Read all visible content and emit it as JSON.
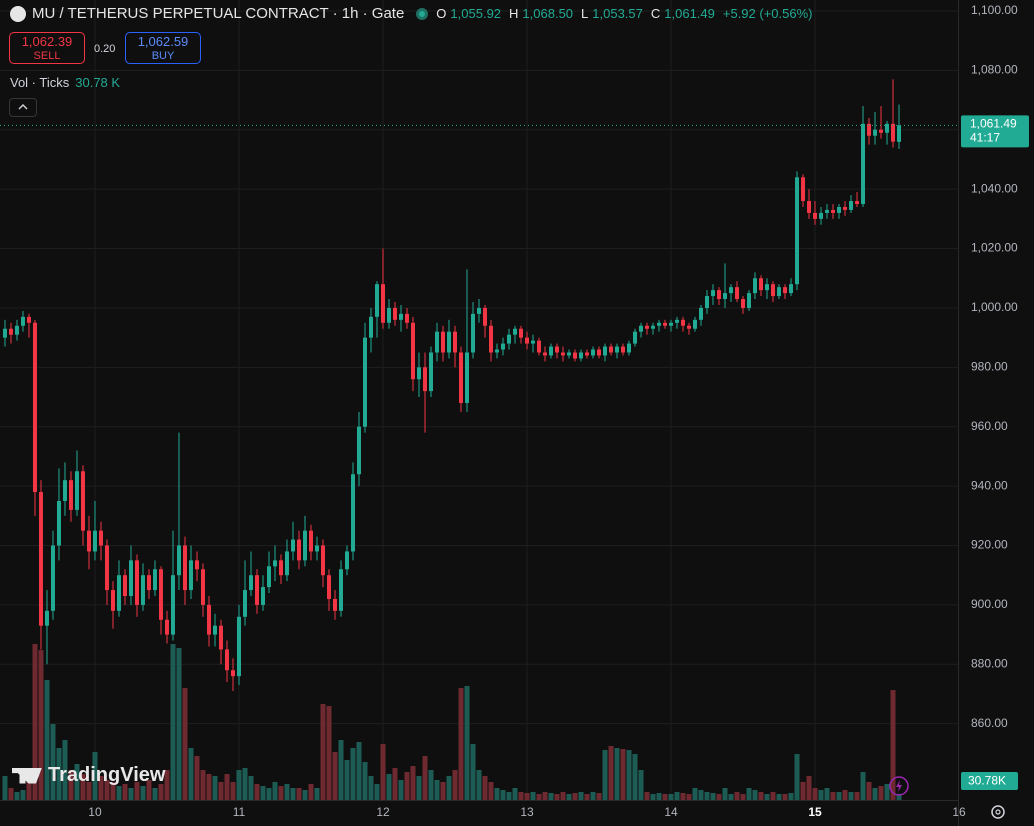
{
  "header": {
    "symbol": "MU / TETHERUS PERPETUAL CONTRACT · 1h · Gate",
    "ohlc_labels": [
      "O",
      "H",
      "L",
      "C"
    ],
    "ohlc_values": [
      "1,055.92",
      "1,068.50",
      "1,053.57",
      "1,061.49"
    ],
    "change": "+5.92 (+0.56%)",
    "sell_price": "1,062.39",
    "sell_label": "SELL",
    "spread": "0.20",
    "buy_price": "1,062.59",
    "buy_label": "BUY",
    "volume_title": "Vol · Ticks",
    "volume_value": "30.78 K"
  },
  "watermark": "TradingView",
  "chart_data": {
    "type": "candlestick",
    "up_color": "#22ab94",
    "down_color": "#f23645",
    "volume_up_color": "#1d5c55",
    "volume_down_color": "#6e2a30",
    "grid": true,
    "xlim": [
      -0.83,
      158.83
    ],
    "xticks": [
      {
        "value": 15,
        "label": "10"
      },
      {
        "value": 39,
        "label": "11"
      },
      {
        "value": 63,
        "label": "12"
      },
      {
        "value": 87,
        "label": "13"
      },
      {
        "value": 111,
        "label": "14"
      },
      {
        "value": 135,
        "label": "15"
      },
      {
        "value": 159,
        "label": "16"
      }
    ],
    "ylim": [
      834.3,
      1103.7
    ],
    "yticks": [
      {
        "value": 860,
        "label": "860.00"
      },
      {
        "value": 880,
        "label": "880.00"
      },
      {
        "value": 900,
        "label": "900.00"
      },
      {
        "value": 920,
        "label": "920.00"
      },
      {
        "value": 940,
        "label": "940.00"
      },
      {
        "value": 960,
        "label": "960.00"
      },
      {
        "value": 980,
        "label": "980.00"
      },
      {
        "value": 1000,
        "label": "1,000.00"
      },
      {
        "value": 1020,
        "label": "1,020.00"
      },
      {
        "value": 1040,
        "label": "1,040.00"
      },
      {
        "value": 1060,
        "label": "1,060.00"
      },
      {
        "value": 1080,
        "label": "1,080.00"
      },
      {
        "value": 1100,
        "label": "1,100.00"
      }
    ],
    "y2lim": [
      0,
      4000
    ],
    "last_price_label": "1,061.49",
    "countdown": "41:17",
    "last_volume_label": "30.78K",
    "x": [
      0,
      1,
      2,
      3,
      4,
      5,
      6,
      7,
      8,
      9,
      10,
      11,
      12,
      13,
      14,
      15,
      16,
      17,
      18,
      19,
      20,
      21,
      22,
      23,
      24,
      25,
      26,
      27,
      28,
      29,
      30,
      31,
      32,
      33,
      34,
      35,
      36,
      37,
      38,
      39,
      40,
      41,
      42,
      43,
      44,
      45,
      46,
      47,
      48,
      49,
      50,
      51,
      52,
      53,
      54,
      55,
      56,
      57,
      58,
      59,
      60,
      61,
      62,
      63,
      64,
      65,
      66,
      67,
      68,
      69,
      70,
      71,
      72,
      73,
      74,
      75,
      76,
      77,
      78,
      79,
      80,
      81,
      82,
      83,
      84,
      85,
      86,
      87,
      88,
      89,
      90,
      91,
      92,
      93,
      94,
      95,
      96,
      97,
      98,
      99,
      100,
      101,
      102,
      103,
      104,
      105,
      106,
      107,
      108,
      109,
      110,
      111,
      112,
      113,
      114,
      115,
      116,
      117,
      118,
      119,
      120,
      121,
      122,
      123,
      124,
      125,
      126,
      127,
      128,
      129,
      130,
      131,
      132,
      133,
      134,
      135,
      136,
      137,
      138,
      139,
      140,
      141,
      142,
      143,
      144,
      145,
      146,
      147,
      148,
      149
    ],
    "ohlc": [
      [
        990,
        996,
        987,
        993
      ],
      [
        993,
        995,
        988,
        991
      ],
      [
        991,
        996,
        989,
        994
      ],
      [
        994,
        999,
        992,
        997
      ],
      [
        997,
        998,
        990,
        995
      ],
      [
        995,
        996,
        930,
        938
      ],
      [
        938,
        942,
        885,
        893
      ],
      [
        893,
        905,
        880,
        898
      ],
      [
        898,
        925,
        895,
        920
      ],
      [
        920,
        946,
        915,
        935
      ],
      [
        935,
        948,
        930,
        942
      ],
      [
        942,
        945,
        928,
        932
      ],
      [
        932,
        952,
        930,
        945
      ],
      [
        945,
        947,
        920,
        925
      ],
      [
        925,
        930,
        912,
        918
      ],
      [
        918,
        935,
        915,
        925
      ],
      [
        925,
        928,
        915,
        920
      ],
      [
        920,
        922,
        900,
        905
      ],
      [
        905,
        908,
        892,
        898
      ],
      [
        898,
        915,
        896,
        910
      ],
      [
        910,
        912,
        900,
        903
      ],
      [
        903,
        920,
        900,
        915
      ],
      [
        915,
        917,
        896,
        900
      ],
      [
        900,
        914,
        898,
        910
      ],
      [
        910,
        912,
        902,
        905
      ],
      [
        905,
        915,
        903,
        912
      ],
      [
        912,
        913,
        890,
        895
      ],
      [
        895,
        898,
        887,
        890
      ],
      [
        890,
        925,
        888,
        910
      ],
      [
        910,
        958,
        905,
        920
      ],
      [
        920,
        923,
        900,
        905
      ],
      [
        905,
        920,
        902,
        915
      ],
      [
        915,
        918,
        908,
        912
      ],
      [
        912,
        914,
        896,
        900
      ],
      [
        900,
        903,
        886,
        890
      ],
      [
        890,
        897,
        886,
        893
      ],
      [
        893,
        895,
        880,
        885
      ],
      [
        885,
        888,
        874,
        878
      ],
      [
        878,
        882,
        871,
        876
      ],
      [
        876,
        900,
        873,
        896
      ],
      [
        896,
        915,
        893,
        905
      ],
      [
        905,
        918,
        903,
        910
      ],
      [
        910,
        912,
        897,
        900
      ],
      [
        900,
        910,
        898,
        906
      ],
      [
        906,
        918,
        904,
        913
      ],
      [
        913,
        920,
        908,
        915
      ],
      [
        915,
        917,
        907,
        910
      ],
      [
        910,
        922,
        908,
        918
      ],
      [
        918,
        928,
        915,
        922
      ],
      [
        922,
        925,
        912,
        915
      ],
      [
        915,
        930,
        913,
        925
      ],
      [
        925,
        927,
        915,
        918
      ],
      [
        918,
        923,
        915,
        920
      ],
      [
        920,
        922,
        906,
        910
      ],
      [
        910,
        912,
        898,
        902
      ],
      [
        902,
        905,
        895,
        898
      ],
      [
        898,
        915,
        896,
        912
      ],
      [
        912,
        920,
        910,
        918
      ],
      [
        918,
        948,
        915,
        944
      ],
      [
        944,
        965,
        940,
        960
      ],
      [
        960,
        995,
        958,
        990
      ],
      [
        990,
        1000,
        985,
        997
      ],
      [
        997,
        1009,
        990,
        1008
      ],
      [
        1008,
        1020,
        993,
        995
      ],
      [
        995,
        1003,
        993,
        1000
      ],
      [
        1000,
        1002,
        994,
        996
      ],
      [
        996,
        1001,
        992,
        998
      ],
      [
        998,
        1000,
        993,
        995
      ],
      [
        995,
        997,
        972,
        976
      ],
      [
        976,
        985,
        970,
        980
      ],
      [
        980,
        985,
        958,
        972
      ],
      [
        972,
        987,
        970,
        985
      ],
      [
        985,
        995,
        982,
        992
      ],
      [
        992,
        994,
        982,
        985
      ],
      [
        985,
        996,
        983,
        992
      ],
      [
        992,
        994,
        980,
        985
      ],
      [
        985,
        987,
        965,
        968
      ],
      [
        968,
        1013,
        965,
        985
      ],
      [
        985,
        1002,
        983,
        998
      ],
      [
        998,
        1003,
        995,
        1000
      ],
      [
        1000,
        1001,
        990,
        994
      ],
      [
        994,
        996,
        982,
        985
      ],
      [
        985,
        988,
        983,
        986
      ],
      [
        986,
        990,
        984,
        988
      ],
      [
        988,
        993,
        986,
        991
      ],
      [
        991,
        994,
        988,
        993
      ],
      [
        993,
        994,
        988,
        990
      ],
      [
        990,
        992,
        986,
        988
      ],
      [
        988,
        991,
        985,
        989
      ],
      [
        989,
        990,
        984,
        985
      ],
      [
        985,
        987,
        982,
        984
      ],
      [
        984,
        988,
        983,
        987
      ],
      [
        987,
        988,
        983,
        985
      ],
      [
        985,
        987,
        982,
        984
      ],
      [
        984,
        986,
        983,
        985
      ],
      [
        985,
        986,
        982,
        983
      ],
      [
        983,
        986,
        982,
        985
      ],
      [
        985,
        986,
        983,
        984
      ],
      [
        984,
        987,
        983,
        986
      ],
      [
        986,
        987,
        983,
        984
      ],
      [
        984,
        988,
        982,
        987
      ],
      [
        987,
        988,
        984,
        985
      ],
      [
        985,
        988,
        983,
        987
      ],
      [
        987,
        988,
        984,
        985
      ],
      [
        985,
        989,
        984,
        988
      ],
      [
        988,
        993,
        987,
        992
      ],
      [
        992,
        995,
        990,
        994
      ],
      [
        994,
        995,
        991,
        993
      ],
      [
        993,
        995,
        991,
        994
      ],
      [
        994,
        996,
        992,
        995
      ],
      [
        995,
        996,
        993,
        994
      ],
      [
        994,
        996,
        992,
        995
      ],
      [
        995,
        997,
        993,
        996
      ],
      [
        996,
        997,
        992,
        994
      ],
      [
        994,
        995,
        991,
        993
      ],
      [
        993,
        997,
        992,
        996
      ],
      [
        996,
        1001,
        994,
        1000
      ],
      [
        1000,
        1006,
        998,
        1004
      ],
      [
        1004,
        1008,
        1001,
        1006
      ],
      [
        1006,
        1007,
        1001,
        1003
      ],
      [
        1003,
        1015,
        1000,
        1005
      ],
      [
        1005,
        1008,
        1002,
        1007
      ],
      [
        1007,
        1009,
        1002,
        1003
      ],
      [
        1003,
        1004,
        998,
        1000
      ],
      [
        1000,
        1006,
        999,
        1005
      ],
      [
        1005,
        1012,
        1003,
        1010
      ],
      [
        1010,
        1011,
        1004,
        1006
      ],
      [
        1006,
        1010,
        1003,
        1008
      ],
      [
        1008,
        1009,
        1002,
        1004
      ],
      [
        1004,
        1008,
        1003,
        1007
      ],
      [
        1007,
        1008,
        1003,
        1005
      ],
      [
        1005,
        1010,
        1004,
        1008
      ],
      [
        1008,
        1046,
        1006,
        1044
      ],
      [
        1044,
        1045,
        1034,
        1036
      ],
      [
        1036,
        1040,
        1030,
        1032
      ],
      [
        1032,
        1036,
        1028,
        1030
      ],
      [
        1030,
        1034,
        1028,
        1032
      ],
      [
        1032,
        1035,
        1030,
        1033
      ],
      [
        1033,
        1035,
        1030,
        1032
      ],
      [
        1032,
        1035,
        1030,
        1034
      ],
      [
        1034,
        1036,
        1031,
        1033
      ],
      [
        1033,
        1038,
        1032,
        1036
      ],
      [
        1036,
        1039,
        1034,
        1035
      ],
      [
        1035,
        1068,
        1034,
        1062
      ],
      [
        1062,
        1064,
        1055,
        1058
      ],
      [
        1058,
        1066,
        1055,
        1060
      ],
      [
        1060,
        1068,
        1057,
        1059
      ],
      [
        1059,
        1063,
        1055,
        1062
      ],
      [
        1062,
        1077,
        1054,
        1056
      ],
      [
        1055.92,
        1068.5,
        1053.57,
        1061.49
      ]
    ],
    "volume": [
      120,
      60,
      40,
      50,
      90,
      780,
      750,
      600,
      380,
      260,
      300,
      150,
      180,
      130,
      90,
      240,
      120,
      100,
      90,
      70,
      80,
      60,
      90,
      70,
      100,
      60,
      80,
      150,
      780,
      760,
      560,
      260,
      220,
      150,
      130,
      120,
      90,
      130,
      90,
      150,
      160,
      120,
      80,
      70,
      60,
      90,
      70,
      80,
      60,
      60,
      50,
      80,
      60,
      480,
      470,
      240,
      300,
      200,
      260,
      290,
      190,
      120,
      80,
      280,
      130,
      160,
      100,
      140,
      170,
      120,
      220,
      150,
      100,
      90,
      120,
      150,
      560,
      570,
      280,
      150,
      120,
      90,
      60,
      50,
      40,
      60,
      40,
      35,
      40,
      30,
      40,
      35,
      30,
      40,
      30,
      35,
      40,
      30,
      40,
      35,
      250,
      270,
      260,
      255,
      250,
      230,
      150,
      40,
      30,
      35,
      30,
      30,
      40,
      35,
      30,
      60,
      50,
      40,
      35,
      30,
      60,
      30,
      40,
      30,
      60,
      50,
      40,
      30,
      40,
      30,
      30,
      35,
      230,
      90,
      120,
      60,
      50,
      60,
      40,
      40,
      50,
      40,
      40,
      140,
      90,
      60,
      70,
      80,
      550,
      30.78
    ]
  }
}
